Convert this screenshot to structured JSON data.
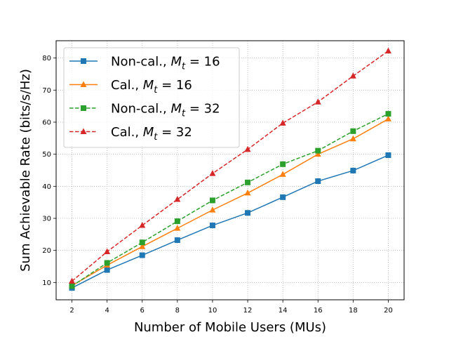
{
  "chart_data": {
    "type": "line",
    "title": "",
    "xlabel": "Number of Mobile Users (MUs)",
    "ylabel": "Sum Achievable Rate (bits/s/Hz)",
    "x": [
      2,
      4,
      6,
      8,
      10,
      12,
      14,
      16,
      18,
      20
    ],
    "xlim": [
      1.1,
      20.9
    ],
    "ylim": [
      4.6,
      85.4
    ],
    "xticks": [
      2,
      4,
      6,
      8,
      10,
      12,
      14,
      16,
      18,
      20
    ],
    "yticks": [
      10,
      20,
      30,
      40,
      50,
      60,
      70,
      80
    ],
    "grid": true,
    "legend_position": "top-left",
    "series": [
      {
        "name": "Non-cal., M_t = 16",
        "label_main": "Non-cal., ",
        "label_var": "M",
        "label_sub": "t",
        "label_eq": " = 16",
        "color": "#1f77b4",
        "linestyle": "solid",
        "marker": "square",
        "values": [
          8.3,
          13.9,
          18.5,
          23.2,
          27.8,
          31.7,
          36.6,
          41.6,
          44.9,
          49.7
        ]
      },
      {
        "name": "Cal., M_t = 16",
        "label_main": "Cal., ",
        "label_var": "M",
        "label_sub": "t",
        "label_eq": " = 16",
        "color": "#ff7f0e",
        "linestyle": "solid",
        "marker": "triangle",
        "values": [
          9.0,
          15.4,
          21.2,
          26.9,
          32.6,
          37.9,
          43.7,
          50.0,
          54.8,
          61.0
        ]
      },
      {
        "name": "Non-cal., M_t = 32",
        "label_main": "Non-cal., ",
        "label_var": "M",
        "label_sub": "t",
        "label_eq": " = 32",
        "color": "#2ca02c",
        "linestyle": "dashed",
        "marker": "square",
        "values": [
          8.9,
          16.1,
          22.5,
          29.1,
          35.6,
          41.2,
          46.9,
          51.1,
          57.2,
          62.6
        ]
      },
      {
        "name": "Cal., M_t = 32",
        "label_main": "Cal., ",
        "label_var": "M",
        "label_sub": "t",
        "label_eq": " = 32",
        "color": "#d62728",
        "linestyle": "dashed",
        "marker": "triangle",
        "values": [
          10.4,
          19.6,
          27.8,
          35.9,
          44.0,
          51.5,
          59.7,
          66.3,
          74.4,
          82.2
        ]
      }
    ]
  }
}
